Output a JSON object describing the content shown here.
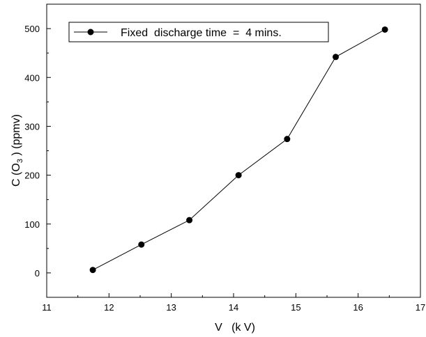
{
  "chart_data": {
    "type": "line",
    "xlabel": "V   (k V)",
    "ylabel_parts": [
      "C (O",
      "3",
      " )  (ppmv)"
    ],
    "xlim": [
      11,
      17
    ],
    "ylim": [
      -50,
      550
    ],
    "x_ticks": [
      11,
      12,
      13,
      14,
      15,
      16,
      17
    ],
    "y_ticks": [
      0,
      100,
      200,
      300,
      400,
      500
    ],
    "grid": false,
    "legend_position": "top-left",
    "series": [
      {
        "name": "Fixed  discharge time  =  4 mins.",
        "color": "#000000",
        "marker": "circle",
        "x": [
          11.74,
          12.52,
          13.29,
          14.08,
          14.86,
          15.64,
          16.43
        ],
        "y": [
          6,
          58,
          108,
          200,
          274,
          442,
          498
        ]
      }
    ]
  }
}
